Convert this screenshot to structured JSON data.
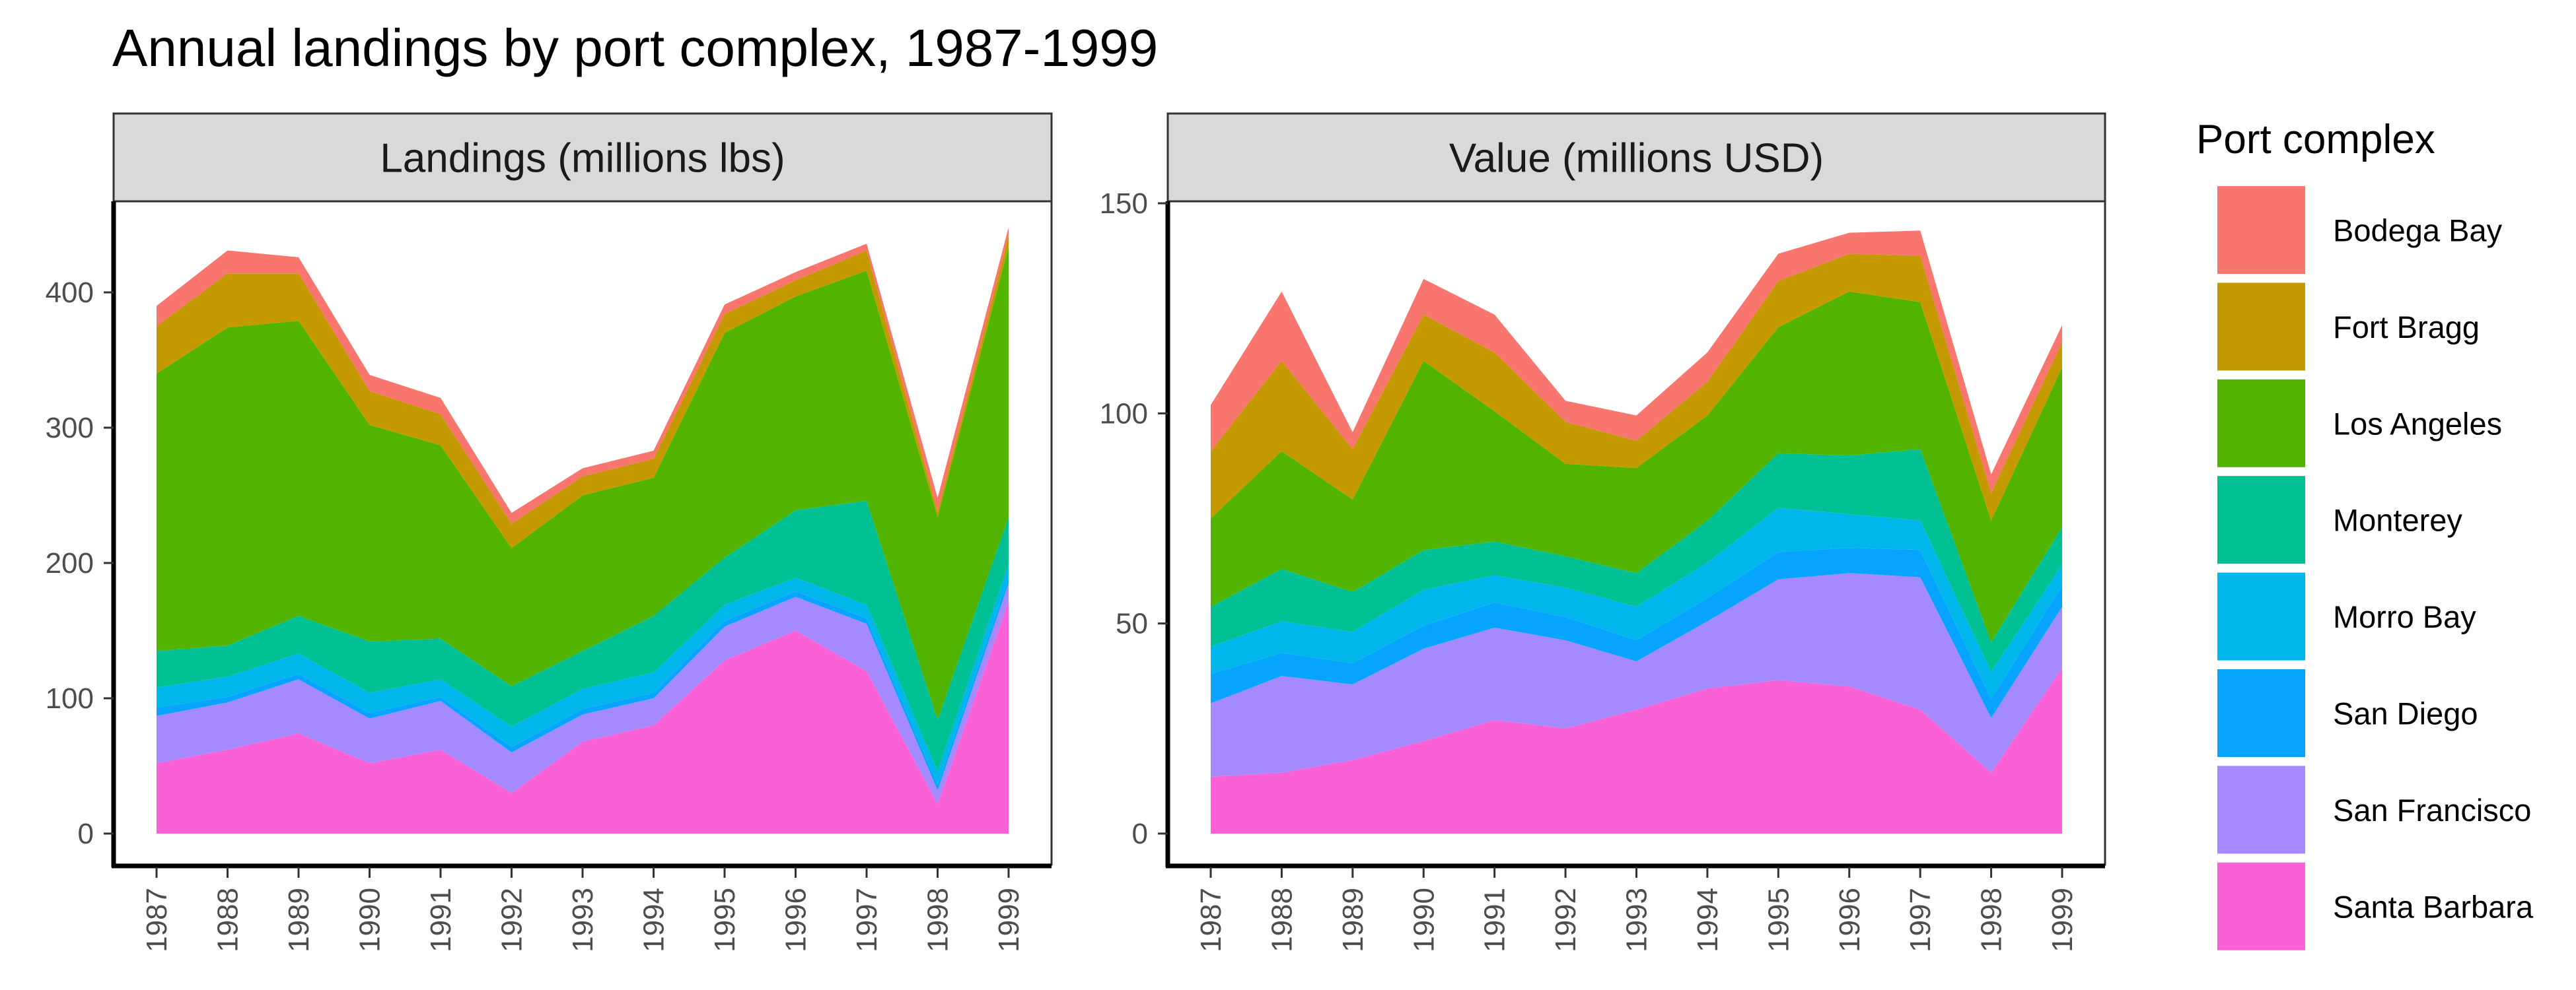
{
  "title": "Annual landings by port complex, 1987-1999",
  "legend": {
    "title": "Port complex",
    "items": [
      {
        "label": "Bodega Bay",
        "color": "#F8766D"
      },
      {
        "label": "Fort Bragg",
        "color": "#C49A00"
      },
      {
        "label": "Los Angeles",
        "color": "#53B400"
      },
      {
        "label": "Monterey",
        "color": "#00C094"
      },
      {
        "label": "Morro Bay",
        "color": "#00B6EB"
      },
      {
        "label": "San Diego",
        "color": "#06A4FF"
      },
      {
        "label": "San Francisco",
        "color": "#A58AFF"
      },
      {
        "label": "Santa Barbara",
        "color": "#FB61D7"
      }
    ]
  },
  "chart_data": [
    {
      "type": "area",
      "stacked": true,
      "title": "Landings (millions lbs)",
      "x": [
        1987,
        1988,
        1989,
        1990,
        1991,
        1992,
        1993,
        1994,
        1995,
        1996,
        1997,
        1998,
        1999
      ],
      "ylim": [
        0,
        460
      ],
      "yticks": [
        0,
        100,
        200,
        300,
        400
      ],
      "stack_order_bottom_to_top": [
        "Santa Barbara",
        "San Francisco",
        "San Diego",
        "Morro Bay",
        "Monterey",
        "Los Angeles",
        "Fort Bragg",
        "Bodega Bay"
      ],
      "series": [
        {
          "name": "Santa Barbara",
          "color": "#FB61D7",
          "values": [
            52,
            62,
            74,
            52,
            62,
            30,
            68,
            80,
            128,
            150,
            120,
            22,
            172
          ]
        },
        {
          "name": "San Francisco",
          "color": "#A58AFF",
          "values": [
            35,
            35,
            40,
            33,
            36,
            30,
            20,
            20,
            25,
            25,
            35,
            10,
            13
          ]
        },
        {
          "name": "San Diego",
          "color": "#06A4FF",
          "values": [
            6,
            4,
            4,
            4,
            3,
            4,
            4,
            4,
            4,
            4,
            4,
            4,
            4
          ]
        },
        {
          "name": "Morro Bay",
          "color": "#00B6EB",
          "values": [
            15,
            15,
            15,
            15,
            13,
            15,
            15,
            15,
            12,
            10,
            10,
            10,
            10
          ]
        },
        {
          "name": "Monterey",
          "color": "#00C094",
          "values": [
            27,
            23,
            28,
            38,
            30,
            30,
            28,
            42,
            35,
            50,
            77,
            38,
            35
          ]
        },
        {
          "name": "Los Angeles",
          "color": "#53B400",
          "values": [
            205,
            235,
            218,
            160,
            143,
            102,
            115,
            102,
            166,
            158,
            170,
            150,
            200
          ]
        },
        {
          "name": "Fort Bragg",
          "color": "#C49A00",
          "values": [
            35,
            40,
            35,
            25,
            23,
            18,
            14,
            14,
            14,
            12,
            15,
            4,
            8
          ]
        },
        {
          "name": "Bodega Bay",
          "color": "#F8766D",
          "values": [
            15,
            17,
            12,
            12,
            12,
            8,
            6,
            6,
            7,
            6,
            5,
            10,
            6
          ]
        }
      ]
    },
    {
      "type": "area",
      "stacked": true,
      "title": "Value (millions USD)",
      "x": [
        1987,
        1988,
        1989,
        1990,
        1991,
        1992,
        1993,
        1994,
        1995,
        1996,
        1997,
        1998,
        1999
      ],
      "ylim": [
        0,
        150
      ],
      "yticks": [
        0,
        50,
        100,
        150
      ],
      "stack_order_bottom_to_top": [
        "Santa Barbara",
        "San Francisco",
        "San Diego",
        "Morro Bay",
        "Monterey",
        "Los Angeles",
        "Fort Bragg",
        "Bodega Bay"
      ],
      "series": [
        {
          "name": "Santa Barbara",
          "color": "#FB61D7",
          "values": [
            13.5,
            14.5,
            17.5,
            22,
            27,
            25,
            29.5,
            34.5,
            36.5,
            35,
            29.5,
            14.5,
            39.5
          ]
        },
        {
          "name": "San Francisco",
          "color": "#A58AFF",
          "values": [
            17.5,
            23,
            18,
            22,
            22,
            21,
            11.5,
            16,
            24,
            27,
            31.5,
            13,
            14.5
          ]
        },
        {
          "name": "San Diego",
          "color": "#06A4FF",
          "values": [
            7,
            5.5,
            5,
            5.5,
            6,
            5.5,
            5,
            5.5,
            6.5,
            6,
            6.5,
            4.5,
            5
          ]
        },
        {
          "name": "Morro Bay",
          "color": "#00B6EB",
          "values": [
            6.5,
            7.5,
            7.5,
            8.5,
            6.5,
            7,
            8,
            8.5,
            10.5,
            8,
            7,
            6.5,
            5
          ]
        },
        {
          "name": "Monterey",
          "color": "#00C094",
          "values": [
            9.5,
            12.5,
            9.5,
            9.5,
            8,
            7.5,
            8,
            10,
            13,
            14,
            17,
            7,
            9
          ]
        },
        {
          "name": "Los Angeles",
          "color": "#53B400",
          "values": [
            21,
            28,
            22,
            45,
            31,
            22,
            25,
            25,
            30,
            39,
            35,
            29,
            38
          ]
        },
        {
          "name": "Fort Bragg",
          "color": "#C49A00",
          "values": [
            16,
            21.5,
            12,
            11,
            14,
            10,
            6.5,
            8,
            11,
            9,
            11,
            6.5,
            6
          ]
        },
        {
          "name": "Bodega Bay",
          "color": "#F8766D",
          "values": [
            11,
            16.5,
            4,
            8.5,
            9,
            5,
            6,
            7,
            6.5,
            5,
            6,
            4.5,
            4
          ]
        }
      ]
    }
  ]
}
